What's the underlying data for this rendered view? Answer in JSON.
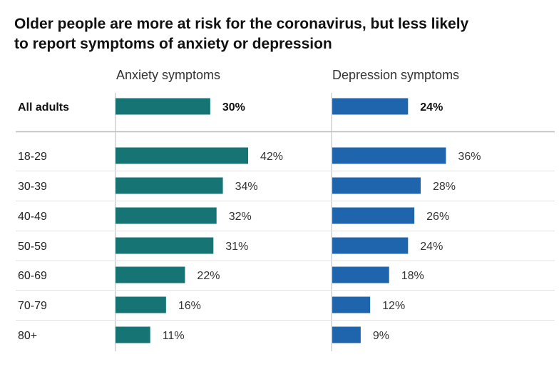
{
  "title_lines": [
    "Older people are more at risk for the coronavirus, but less likely",
    "to report symptoms of anxiety or depression"
  ],
  "chart_data": {
    "type": "bar",
    "orientation": "horizontal",
    "title": "Older people are more at risk for the coronavirus, but less likely to report symptoms of anxiety or depression",
    "categories": [
      "All adults",
      "18-29",
      "30-39",
      "40-49",
      "50-59",
      "60-69",
      "70-79",
      "80+"
    ],
    "series": [
      {
        "name": "Anxiety symptoms",
        "color": "#167475",
        "values": [
          30,
          42,
          34,
          32,
          31,
          22,
          16,
          11
        ],
        "labels": [
          "30%",
          "42%",
          "34%",
          "32%",
          "31%",
          "22%",
          "16%",
          "11%"
        ]
      },
      {
        "name": "Depression symptoms",
        "color": "#1f65ad",
        "values": [
          24,
          36,
          28,
          26,
          24,
          18,
          12,
          9
        ],
        "labels": [
          "24%",
          "36%",
          "28%",
          "26%",
          "24%",
          "18%",
          "12%",
          "9%"
        ]
      }
    ],
    "unit": "%",
    "highlight_category": "All adults"
  }
}
